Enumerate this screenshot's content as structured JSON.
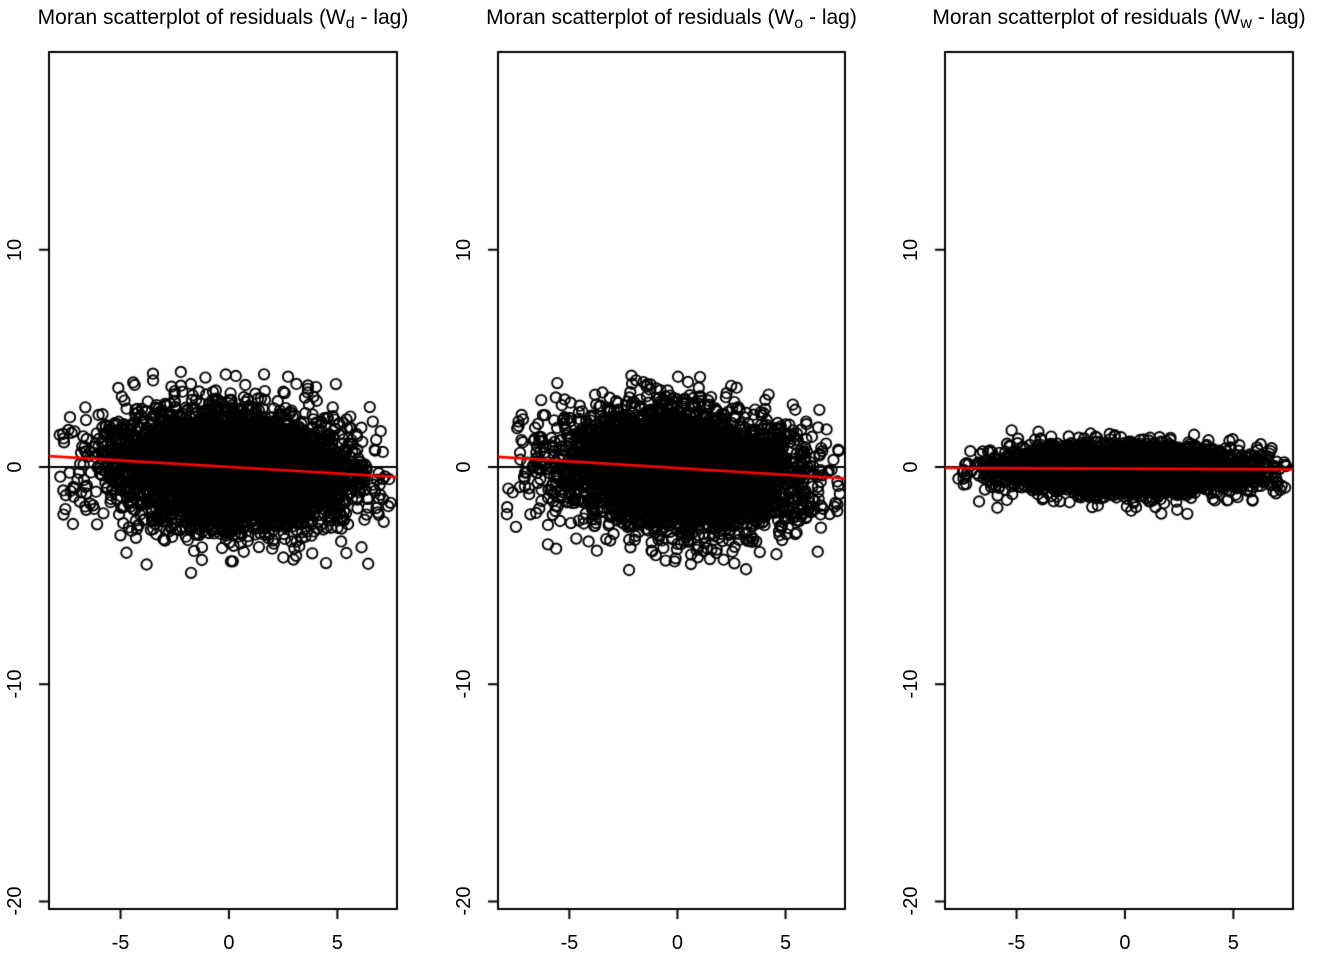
{
  "figure": {
    "background": "#FFFFFF",
    "box_color": "#000000",
    "point_color": "#000000",
    "zero_line_color": "#000000",
    "fit_line_color": "#FF0000",
    "tick_label_color": "#000000"
  },
  "chart_data": [
    {
      "type": "scatter",
      "title": "Moran scatterplot of residuals (Wd - lag)",
      "title_prefix": "Moran scatterplot of residuals (W",
      "title_sub": "d",
      "title_suffix": " - lag)",
      "xlabel": "",
      "ylabel": "",
      "x_ticks": [
        -5,
        0,
        5
      ],
      "y_ticks": [
        -20,
        -10,
        0,
        10
      ],
      "xlim": [
        -8.3,
        7.75
      ],
      "ylim": [
        -20.35,
        19.1
      ],
      "grid": false,
      "zero_line_y": 0,
      "fit_line": {
        "intercept": 0.0,
        "slope": -0.06
      },
      "cloud": {
        "n": 5200,
        "x_mean": 0.1,
        "x_sd": 2.7,
        "x_min": -7.9,
        "x_max": 7.6,
        "resid_mean": -0.05,
        "resid_sd": 1.3,
        "tail_frac": 0.03,
        "tail_sd": 2.0,
        "y_min": -5.4,
        "y_max": 4.6,
        "seed": 101
      }
    },
    {
      "type": "scatter",
      "title": "Moran scatterplot of residuals (Wo - lag)",
      "title_prefix": "Moran scatterplot of residuals (W",
      "title_sub": "o",
      "title_suffix": " - lag)",
      "xlabel": "",
      "ylabel": "",
      "x_ticks": [
        -5,
        0,
        5
      ],
      "y_ticks": [
        -20,
        -10,
        0,
        10
      ],
      "xlim": [
        -8.3,
        7.75
      ],
      "ylim": [
        -20.35,
        19.1
      ],
      "grid": false,
      "zero_line_y": 0,
      "fit_line": {
        "intercept": -0.05,
        "slope": -0.062
      },
      "cloud": {
        "n": 5200,
        "x_mean": 0.1,
        "x_sd": 2.7,
        "x_min": -7.9,
        "x_max": 7.6,
        "resid_mean": -0.05,
        "resid_sd": 1.3,
        "tail_frac": 0.03,
        "tail_sd": 2.0,
        "y_min": -5.0,
        "y_max": 4.2,
        "seed": 202
      }
    },
    {
      "type": "scatter",
      "title": "Moran scatterplot of residuals (Ww - lag)",
      "title_prefix": "Moran scatterplot of residuals (W",
      "title_sub": "w",
      "title_suffix": " - lag)",
      "xlabel": "",
      "ylabel": "",
      "x_ticks": [
        -5,
        0,
        5
      ],
      "y_ticks": [
        -20,
        -10,
        0,
        10
      ],
      "xlim": [
        -8.3,
        7.75
      ],
      "ylim": [
        -20.35,
        19.1
      ],
      "grid": false,
      "zero_line_y": 0,
      "fit_line": {
        "intercept": -0.08,
        "slope": -0.004
      },
      "cloud": {
        "n": 5200,
        "x_mean": 0.1,
        "x_sd": 2.7,
        "x_min": -7.9,
        "x_max": 7.6,
        "resid_mean": -0.05,
        "resid_sd": 0.5,
        "tail_frac": 0.03,
        "tail_sd": 0.8,
        "y_min": -2.5,
        "y_max": 1.7,
        "seed": 303
      }
    }
  ]
}
